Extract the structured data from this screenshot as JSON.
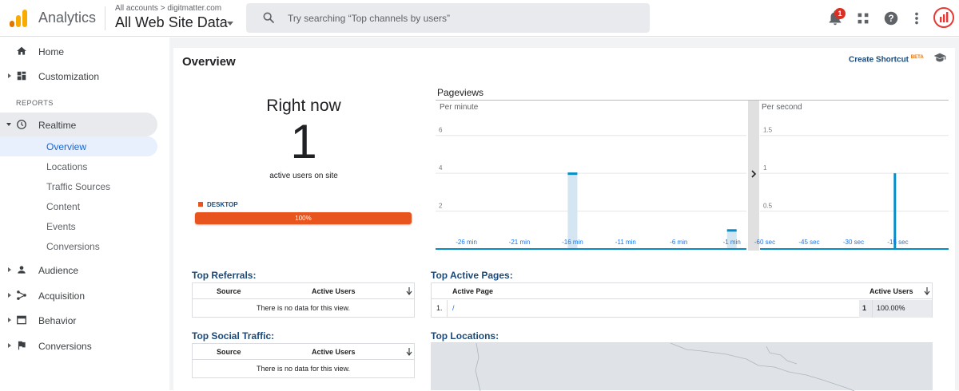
{
  "app": {
    "title": "Analytics",
    "brand_colors": [
      "#f9ab00",
      "#e37400"
    ]
  },
  "account": {
    "crumb": "All accounts > digitmatter.com",
    "view": "All Web Site Data"
  },
  "search": {
    "placeholder": "Try searching “Top channels by users”"
  },
  "header": {
    "notification_count": "1",
    "icons": [
      "bell-icon",
      "apps-grid-icon",
      "help-icon",
      "more-vert-icon",
      "avatar"
    ]
  },
  "sidebar": {
    "home": "Home",
    "customization": "Customization",
    "section_reports": "REPORTS",
    "realtime": "Realtime",
    "realtime_items": [
      "Overview",
      "Locations",
      "Traffic Sources",
      "Content",
      "Events",
      "Conversions"
    ],
    "audience": "Audience",
    "acquisition": "Acquisition",
    "behavior": "Behavior",
    "conversions": "Conversions"
  },
  "main": {
    "title": "Overview",
    "shortcut": "Create Shortcut",
    "shortcut_badge": "BETA",
    "right_now": {
      "title": "Right now",
      "count": "1",
      "subtitle": "active users on site",
      "device_label": "DESKTOP",
      "device_percent": "100%",
      "device_color": "#e8541d"
    },
    "pageviews": {
      "title": "Pageviews",
      "per_minute": "Per minute",
      "per_second": "Per second"
    },
    "top_referrals": {
      "title": "Top Referrals:",
      "col_source": "Source",
      "col_users": "Active Users",
      "empty": "There is no data for this view."
    },
    "top_social": {
      "title": "Top Social Traffic:",
      "col_source": "Source",
      "col_users": "Active Users",
      "empty": "There is no data for this view."
    },
    "top_pages": {
      "title": "Top Active Pages:",
      "col_page": "Active Page",
      "col_users": "Active Users",
      "rows": [
        {
          "index": "1.",
          "page": "/",
          "users": "1",
          "percent": "100.00%"
        }
      ]
    },
    "top_locations": {
      "title": "Top Locations:"
    }
  },
  "chart_data": [
    {
      "type": "bar",
      "title": "Per minute",
      "x_ticks": [
        "-26 min",
        "-21 min",
        "-16 min",
        "-11 min",
        "-6 min",
        "-1 min"
      ],
      "y_ticks": [
        "2",
        "4",
        "6"
      ],
      "ylim": [
        0,
        7
      ],
      "bars": [
        {
          "x": -16,
          "y": 4
        },
        {
          "x": -1,
          "y": 1
        }
      ],
      "color": "#058dc7"
    },
    {
      "type": "bar",
      "title": "Per second",
      "x_ticks": [
        "-60 sec",
        "-45 sec",
        "-30 sec",
        "-15 sec"
      ],
      "y_ticks": [
        "0.5",
        "1",
        "1.5"
      ],
      "ylim": [
        0,
        1.75
      ],
      "bars": [
        {
          "x": -16,
          "y": 1
        }
      ],
      "color": "#058dc7"
    }
  ]
}
